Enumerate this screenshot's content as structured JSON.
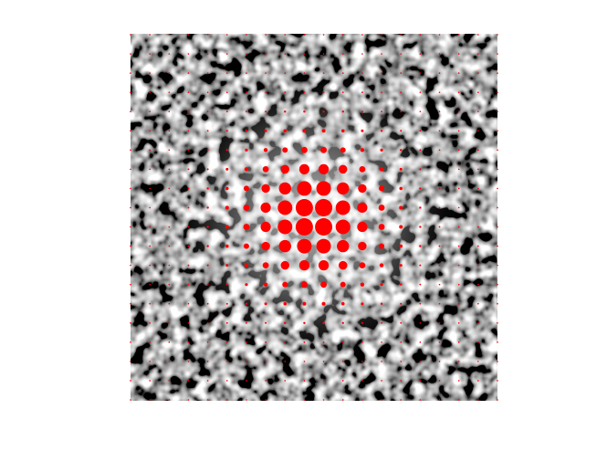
{
  "chart_data": {
    "type": "dot-grid",
    "color": "#ff0000",
    "sizes": [
      [
        0.8,
        0.8,
        0.8,
        0.8,
        0.8,
        0.8,
        0.8,
        0.8,
        0.8,
        0.8,
        0.8,
        0.8,
        0.8,
        0.8,
        0.8,
        0.8,
        0.8,
        0.8,
        0.8,
        0.8
      ],
      [
        0.8,
        0.8,
        0.8,
        0.8,
        0.8,
        0.8,
        0.8,
        0.8,
        0.8,
        0.8,
        0.8,
        0.8,
        0.8,
        0.8,
        0.8,
        0.8,
        0.8,
        0.8,
        0.8,
        0.8
      ],
      [
        0.8,
        0.8,
        0.8,
        0.8,
        0.8,
        0.8,
        0.8,
        0.8,
        0.8,
        0.8,
        0.8,
        0.8,
        0.8,
        0.8,
        0.8,
        0.8,
        0.8,
        0.8,
        0.8,
        0.8
      ],
      [
        0.8,
        0.8,
        0.8,
        0.8,
        0.8,
        0.8,
        0.8,
        0.9,
        0.9,
        0.9,
        0.9,
        0.9,
        0.9,
        0.8,
        0.8,
        0.8,
        0.8,
        0.8,
        0.8,
        0.8
      ],
      [
        0.8,
        0.8,
        0.8,
        0.8,
        0.8,
        0.9,
        0.9,
        1.0,
        1.2,
        1.2,
        1.2,
        1.2,
        1.0,
        0.9,
        0.9,
        0.8,
        0.8,
        0.8,
        0.8,
        0.8
      ],
      [
        0.8,
        0.8,
        0.8,
        0.8,
        0.9,
        1.0,
        1.2,
        1.5,
        1.8,
        2.0,
        2.0,
        1.8,
        1.5,
        1.2,
        1.0,
        0.9,
        0.8,
        0.8,
        0.8,
        0.8
      ],
      [
        0.8,
        0.8,
        0.8,
        0.8,
        0.9,
        1.2,
        1.6,
        2.2,
        3.0,
        3.4,
        3.4,
        3.0,
        2.2,
        1.6,
        1.2,
        0.9,
        0.8,
        0.8,
        0.8,
        0.8
      ],
      [
        0.8,
        0.8,
        0.8,
        0.9,
        1.0,
        1.5,
        2.2,
        3.4,
        4.7,
        5.6,
        5.6,
        4.7,
        3.4,
        2.2,
        1.5,
        1.0,
        0.9,
        0.8,
        0.8,
        0.8
      ],
      [
        0.8,
        0.8,
        0.8,
        0.9,
        1.2,
        1.8,
        3.0,
        4.7,
        6.7,
        8.0,
        8.0,
        6.7,
        4.7,
        3.0,
        1.8,
        1.2,
        0.9,
        0.8,
        0.8,
        0.8
      ],
      [
        0.8,
        0.8,
        0.8,
        0.9,
        1.2,
        2.0,
        3.4,
        5.6,
        8.0,
        9.5,
        9.5,
        8.0,
        5.6,
        3.4,
        2.0,
        1.2,
        0.9,
        0.8,
        0.8,
        0.8
      ],
      [
        0.8,
        0.8,
        0.8,
        0.9,
        1.2,
        2.0,
        3.4,
        5.6,
        8.0,
        9.5,
        9.5,
        8.0,
        5.6,
        3.4,
        2.0,
        1.2,
        0.9,
        0.8,
        0.8,
        0.8
      ],
      [
        0.8,
        0.8,
        0.8,
        0.9,
        1.2,
        1.8,
        3.0,
        4.7,
        6.7,
        8.0,
        8.0,
        6.7,
        4.7,
        3.0,
        1.8,
        1.2,
        0.9,
        0.8,
        0.8,
        0.8
      ],
      [
        0.8,
        0.8,
        0.8,
        0.9,
        1.0,
        1.5,
        2.2,
        3.4,
        4.7,
        5.6,
        5.6,
        4.7,
        3.4,
        2.2,
        1.5,
        1.0,
        0.9,
        0.8,
        0.8,
        0.8
      ],
      [
        0.8,
        0.8,
        0.8,
        0.8,
        0.9,
        1.2,
        1.6,
        2.2,
        3.0,
        3.4,
        3.4,
        3.0,
        2.2,
        1.6,
        1.2,
        0.9,
        0.8,
        0.8,
        0.8,
        0.8
      ],
      [
        0.8,
        0.8,
        0.8,
        0.8,
        0.9,
        1.0,
        1.2,
        1.5,
        1.8,
        2.0,
        2.0,
        1.8,
        1.5,
        1.2,
        1.0,
        0.9,
        0.8,
        0.8,
        0.8,
        0.8
      ],
      [
        0.8,
        0.8,
        0.8,
        0.8,
        0.8,
        0.9,
        0.9,
        1.0,
        1.2,
        1.2,
        1.2,
        1.2,
        1.0,
        0.9,
        0.9,
        0.8,
        0.8,
        0.8,
        0.8,
        0.8
      ],
      [
        0.8,
        0.8,
        0.8,
        0.8,
        0.8,
        0.8,
        0.8,
        0.9,
        0.9,
        0.9,
        0.9,
        0.9,
        0.9,
        0.8,
        0.8,
        0.8,
        0.8,
        0.8,
        0.8,
        0.8
      ],
      [
        0.8,
        0.8,
        0.8,
        0.8,
        0.8,
        0.8,
        0.8,
        0.8,
        0.8,
        0.8,
        0.8,
        0.8,
        0.8,
        0.8,
        0.8,
        0.8,
        0.8,
        0.8,
        0.8,
        0.8
      ],
      [
        0.8,
        0.8,
        0.8,
        0.8,
        0.8,
        0.8,
        0.8,
        0.8,
        0.8,
        0.8,
        0.8,
        0.8,
        0.8,
        0.8,
        0.8,
        0.8,
        0.8,
        0.8,
        0.8,
        0.8
      ],
      [
        0.8,
        0.8,
        0.8,
        0.8,
        0.8,
        0.8,
        0.8,
        0.8,
        0.8,
        0.8,
        0.8,
        0.8,
        0.8,
        0.8,
        0.8,
        0.8,
        0.8,
        0.8,
        0.8,
        0.8
      ]
    ]
  }
}
